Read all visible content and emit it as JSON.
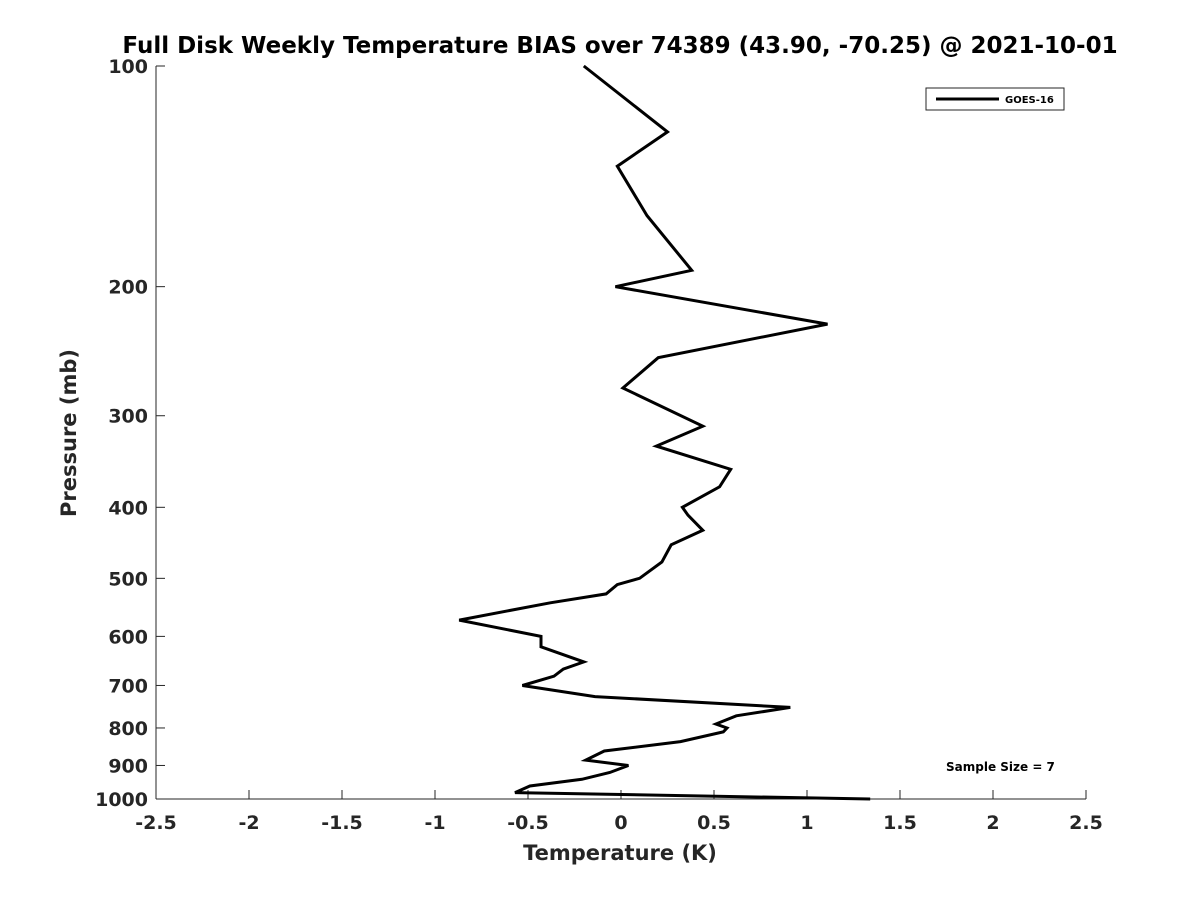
{
  "chart_data": {
    "type": "line",
    "title": "Full Disk Weekly Temperature BIAS over 74389 (43.90, -70.25) @ 2021-10-01",
    "xlabel": "Temperature (K)",
    "ylabel": "Pressure (mb)",
    "xlim": [
      -2.5,
      2.5
    ],
    "ylim": [
      100,
      1000
    ],
    "y_scale": "log",
    "y_reversed": true,
    "x_ticks": [
      "-2.5",
      "-2",
      "-1.5",
      "-1",
      "-0.5",
      "0",
      "0.5",
      "1",
      "1.5",
      "2",
      "2.5"
    ],
    "y_ticks": [
      "100",
      "200",
      "300",
      "400",
      "500",
      "600",
      "700",
      "800",
      "900",
      "1000"
    ],
    "grid": false,
    "legend_position": "top-right",
    "series": [
      {
        "name": "GOES-16",
        "color": "#000000",
        "x": [
          -0.2,
          0.25,
          -0.02,
          0.14,
          0.38,
          -0.03,
          1.11,
          0.2,
          0.01,
          0.44,
          0.19,
          0.59,
          0.53,
          0.33,
          0.36,
          0.44,
          0.27,
          0.22,
          0.1,
          -0.02,
          -0.08,
          -0.38,
          -0.87,
          -0.43,
          -0.43,
          -0.2,
          -0.31,
          -0.36,
          -0.53,
          -0.14,
          0.91,
          0.62,
          0.51,
          0.57,
          0.55,
          0.32,
          -0.09,
          -0.19,
          0.04,
          -0.06,
          -0.21,
          -0.49,
          -0.57,
          1.34
        ],
        "y": [
          100,
          123,
          137,
          160,
          190,
          200,
          225,
          250,
          275,
          310,
          330,
          355,
          375,
          400,
          410,
          430,
          450,
          475,
          500,
          510,
          525,
          540,
          570,
          600,
          620,
          650,
          665,
          680,
          700,
          725,
          750,
          770,
          790,
          800,
          810,
          835,
          860,
          885,
          900,
          920,
          940,
          960,
          980,
          1000
        ]
      }
    ],
    "annotations": [
      "Sample Size = 7"
    ]
  }
}
